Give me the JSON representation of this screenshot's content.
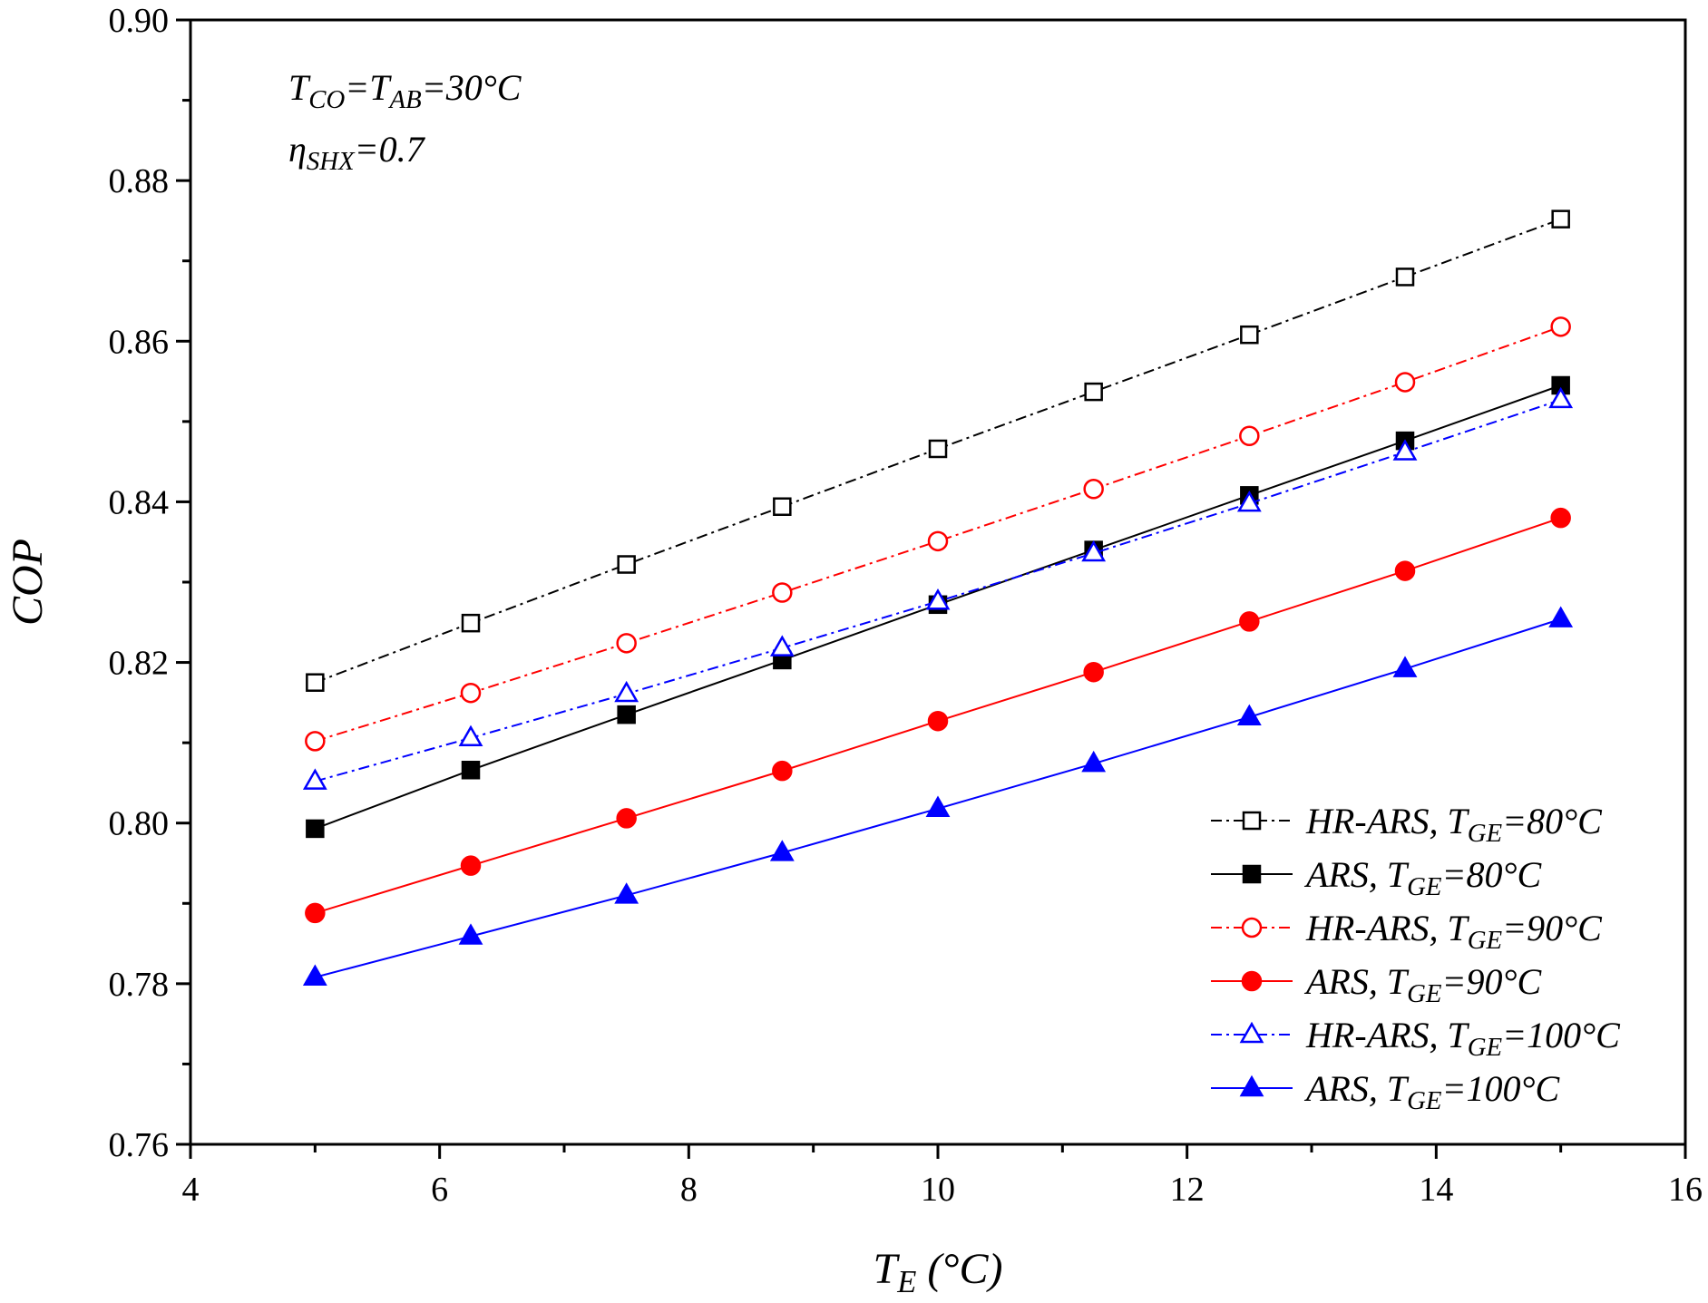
{
  "chart_data": {
    "type": "line",
    "xlabel": {
      "main": "T",
      "sub": "E",
      "suffix": " (°C)"
    },
    "ylabel": "COP",
    "xlim": [
      4,
      16
    ],
    "ylim": [
      0.76,
      0.9
    ],
    "xticks": [
      4,
      6,
      8,
      10,
      12,
      14,
      16
    ],
    "yticks": [
      0.76,
      0.78,
      0.8,
      0.82,
      0.84,
      0.86,
      0.88,
      0.9
    ],
    "xtick_labels": [
      "4",
      "6",
      "8",
      "10",
      "12",
      "14",
      "16"
    ],
    "ytick_labels": [
      "0.76",
      "0.78",
      "0.80",
      "0.82",
      "0.84",
      "0.86",
      "0.88",
      "0.90"
    ],
    "grid": false,
    "legend_position": "bottom-right",
    "annotations": [
      {
        "parts": [
          {
            "t": "T"
          },
          {
            "t": "CO",
            "sub": true
          },
          {
            "t": "=T"
          },
          {
            "t": "AB",
            "sub": true
          },
          {
            "t": "=30°C"
          }
        ]
      },
      {
        "parts": [
          {
            "t": "η"
          },
          {
            "t": "SHX",
            "sub": true
          },
          {
            "t": "=0.7"
          }
        ]
      }
    ],
    "x": [
      5,
      6.25,
      7.5,
      8.75,
      10,
      11.25,
      12.5,
      13.75,
      15
    ],
    "series": [
      {
        "name": "HR-ARS, TGE=80°C",
        "label_prefix": "HR-ARS, T",
        "label_sub": "GE",
        "label_suffix": "=80°C",
        "color": "#000000",
        "dash": "dashdot",
        "marker": "square",
        "filled": false,
        "values": [
          0.8175,
          0.8249,
          0.8322,
          0.8394,
          0.8466,
          0.8537,
          0.8608,
          0.868,
          0.8752
        ]
      },
      {
        "name": "ARS, TGE=80°C",
        "label_prefix": "ARS, T",
        "label_sub": "GE",
        "label_suffix": "=80°C",
        "color": "#000000",
        "dash": "solid",
        "marker": "square",
        "filled": true,
        "values": [
          0.7993,
          0.8066,
          0.8135,
          0.8203,
          0.8272,
          0.834,
          0.8408,
          0.8476,
          0.8545
        ]
      },
      {
        "name": "HR-ARS, TGE=90°C",
        "label_prefix": "HR-ARS, T",
        "label_sub": "GE",
        "label_suffix": "=90°C",
        "color": "#ff0000",
        "dash": "dashdot",
        "marker": "circle",
        "filled": false,
        "values": [
          0.8102,
          0.8162,
          0.8224,
          0.8287,
          0.8351,
          0.8416,
          0.8482,
          0.8549,
          0.8618
        ]
      },
      {
        "name": "ARS, TGE=90°C",
        "label_prefix": "ARS, T",
        "label_sub": "GE",
        "label_suffix": "=90°C",
        "color": "#ff0000",
        "dash": "solid",
        "marker": "circle",
        "filled": true,
        "values": [
          0.7888,
          0.7947,
          0.8006,
          0.8065,
          0.8127,
          0.8188,
          0.8251,
          0.8314,
          0.838
        ]
      },
      {
        "name": "HR-ARS, TGE=100°C",
        "label_prefix": "HR-ARS, T",
        "label_sub": "GE",
        "label_suffix": "=100°C",
        "color": "#0000ff",
        "dash": "dashdot",
        "marker": "triangle",
        "filled": false,
        "values": [
          0.8052,
          0.8106,
          0.8161,
          0.8218,
          0.8276,
          0.8336,
          0.8398,
          0.8462,
          0.8527
        ]
      },
      {
        "name": "ARS, TGE=100°C",
        "label_prefix": "ARS, T",
        "label_sub": "GE",
        "label_suffix": "=100°C",
        "color": "#0000ff",
        "dash": "solid",
        "marker": "triangle",
        "filled": true,
        "values": [
          0.7808,
          0.7859,
          0.791,
          0.7963,
          0.8018,
          0.8074,
          0.8132,
          0.8192,
          0.8254
        ]
      }
    ]
  }
}
